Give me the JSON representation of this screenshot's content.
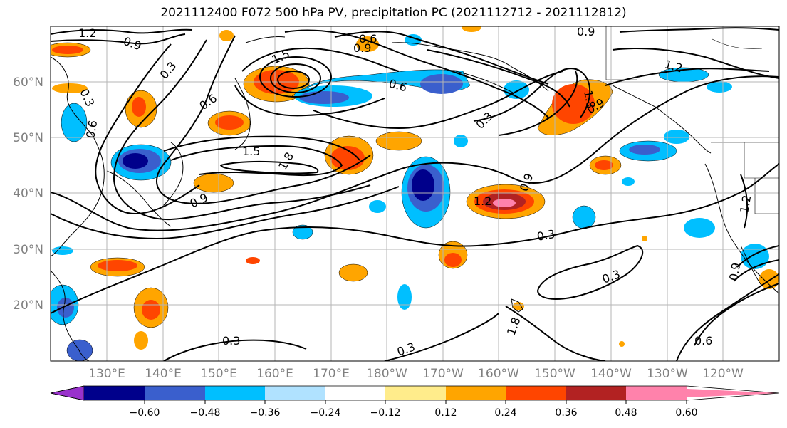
{
  "title": "2021112400 F072 500 hPa PV, precipitation PC (2021112712 - 2021112812)",
  "map": {
    "lat_labels": [
      "60°N",
      "50°N",
      "40°N",
      "30°N",
      "20°N"
    ],
    "lon_labels": [
      "130°E",
      "140°E",
      "150°E",
      "160°E",
      "170°E",
      "180°W",
      "170°W",
      "160°W",
      "150°W",
      "140°W",
      "130°W",
      "120°W"
    ],
    "contour_labels": [
      {
        "text": "1.2"
      },
      {
        "text": "0.9"
      },
      {
        "text": "0.3"
      },
      {
        "text": "0.6"
      },
      {
        "text": "0.3"
      },
      {
        "text": "0.6"
      },
      {
        "text": "0.6"
      },
      {
        "text": "0.9"
      },
      {
        "text": "1.5"
      },
      {
        "text": "0.6"
      },
      {
        "text": "0.9"
      },
      {
        "text": "1.2"
      },
      {
        "text": "1.5"
      },
      {
        "text": "1.8"
      },
      {
        "text": "0.9"
      },
      {
        "text": "1.2"
      },
      {
        "text": "1.8"
      },
      {
        "text": "0.9"
      },
      {
        "text": "0.3"
      },
      {
        "text": "0.3"
      },
      {
        "text": "0.3"
      },
      {
        "text": "0.3"
      },
      {
        "text": "0.3"
      },
      {
        "text": "0.6"
      },
      {
        "text": "0.9"
      },
      {
        "text": "1.2"
      },
      {
        "text": "1.8"
      },
      {
        "text": "0.9"
      }
    ]
  },
  "colorbar": {
    "tick_labels": [
      "−0.60",
      "−0.48",
      "−0.36",
      "−0.24",
      "−0.12",
      "0.12",
      "0.24",
      "0.36",
      "0.48",
      "0.60"
    ],
    "colors": [
      "#9932cc",
      "#00008b",
      "#3a5fcd",
      "#00bfff",
      "#b0e2ff",
      "#ffffff",
      "#ffec8b",
      "#ffa500",
      "#ff4500",
      "#b22222",
      "#ff82ab"
    ]
  },
  "colors": {
    "neg_strong": "#00008b",
    "neg_mid": "#3a5fcd",
    "neg_light": "#00bfff",
    "neg_pale": "#b0e2ff",
    "pos_pale": "#ffec8b",
    "pos_light": "#ffa500",
    "pos_mid": "#ff4500",
    "pos_strong": "#b22222",
    "pos_max": "#ff82ab"
  }
}
